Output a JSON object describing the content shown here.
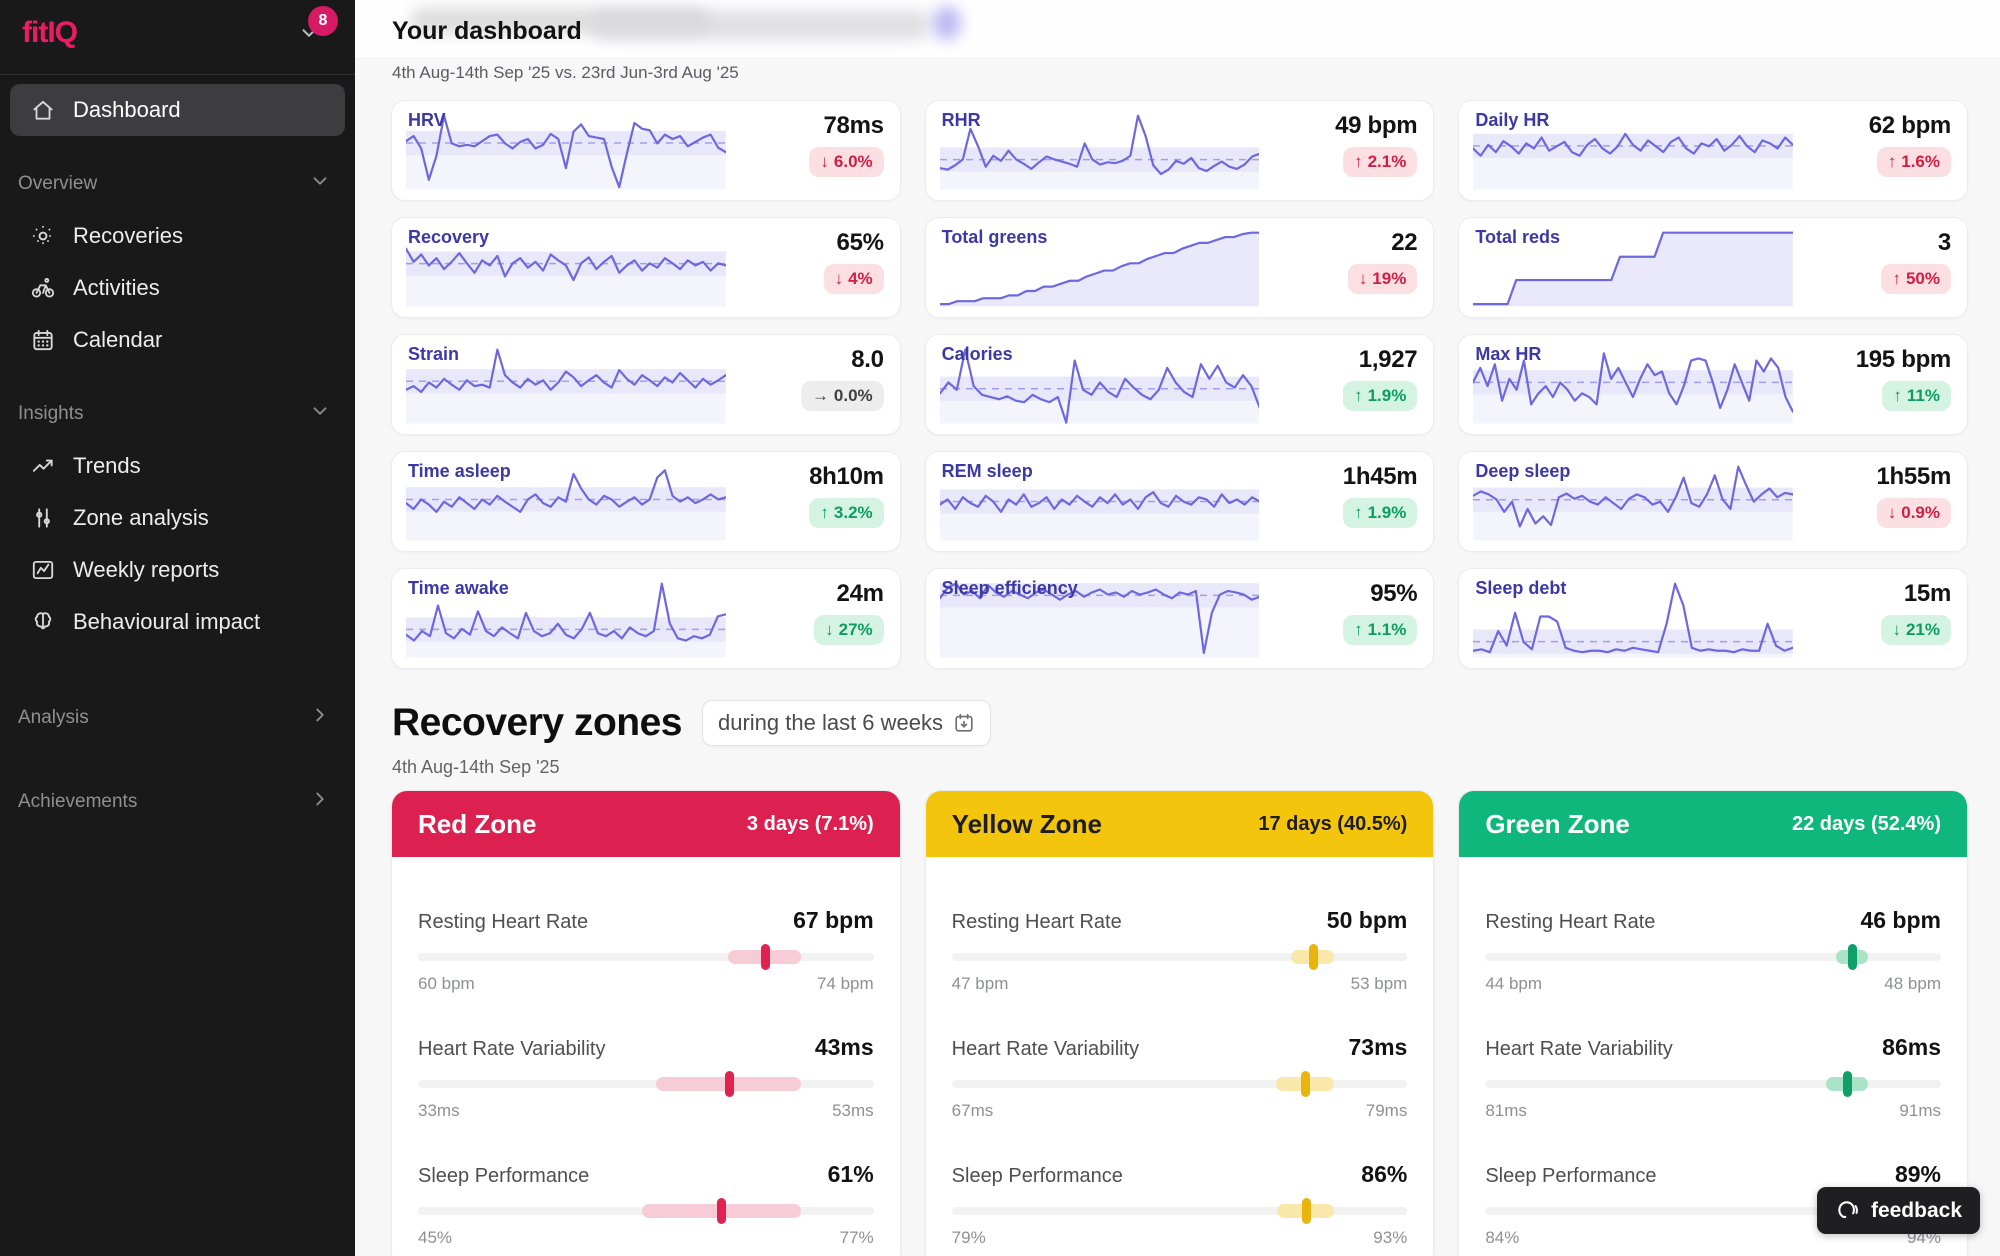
{
  "sidebar": {
    "logo": "fitIQ",
    "badge": "8",
    "primary": [
      {
        "label": "Dashboard",
        "icon": "home",
        "active": true
      }
    ],
    "groups": [
      {
        "label": "Overview",
        "chevron": "down",
        "items": [
          {
            "label": "Recoveries",
            "icon": "sun"
          },
          {
            "label": "Activities",
            "icon": "bike"
          },
          {
            "label": "Calendar",
            "icon": "calendar"
          }
        ]
      },
      {
        "label": "Insights",
        "chevron": "down",
        "items": [
          {
            "label": "Trends",
            "icon": "trend"
          },
          {
            "label": "Zone analysis",
            "icon": "zones"
          },
          {
            "label": "Weekly reports",
            "icon": "report"
          },
          {
            "label": "Behavioural impact",
            "icon": "brain"
          }
        ]
      },
      {
        "label": "Analysis",
        "chevron": "right",
        "items": []
      },
      {
        "label": "Achievements",
        "chevron": "right",
        "items": []
      }
    ]
  },
  "header": {
    "title": "Your dashboard"
  },
  "metrics": {
    "compare_caption": "4th Aug-14th Sep '25 vs. 23rd Jun-3rd Aug '25",
    "cards": [
      {
        "title": "HRV",
        "value": "78ms",
        "delta_dir": "down",
        "delta_text": "6.0%",
        "tone": "bad",
        "chart": {
          "type": "line",
          "values": [
            65,
            72,
            55,
            12,
            45,
            100,
            62,
            58,
            60,
            58,
            65,
            72,
            74,
            62,
            55,
            64,
            68,
            55,
            60,
            75,
            68,
            28,
            78,
            88,
            72,
            70,
            68,
            30,
            2,
            48,
            90,
            82,
            80,
            62,
            74,
            68,
            72,
            58,
            64,
            70,
            74,
            56,
            50
          ]
        }
      },
      {
        "title": "RHR",
        "value": "49 bpm",
        "delta_dir": "up",
        "delta_text": "2.1%",
        "tone": "bad",
        "chart": {
          "type": "line",
          "values": [
            28,
            26,
            32,
            40,
            82,
            58,
            30,
            45,
            38,
            52,
            40,
            34,
            27,
            36,
            44,
            40,
            37,
            34,
            30,
            62,
            40,
            33,
            36,
            35,
            38,
            45,
            100,
            72,
            32,
            20,
            26,
            38,
            34,
            42,
            28,
            24,
            31,
            37,
            30,
            27,
            33,
            44,
            48
          ]
        }
      },
      {
        "title": "Daily HR",
        "value": "62 bpm",
        "delta_dir": "up",
        "delta_text": "1.6%",
        "tone": "bad",
        "chart": {
          "type": "line",
          "values": [
            55,
            45,
            60,
            50,
            65,
            58,
            48,
            62,
            55,
            70,
            52,
            58,
            64,
            50,
            45,
            60,
            68,
            55,
            48,
            58,
            75,
            60,
            52,
            66,
            58,
            50,
            64,
            70,
            55,
            48,
            62,
            58,
            68,
            52,
            60,
            72,
            58,
            50,
            66,
            62,
            55,
            70,
            60
          ]
        }
      },
      {
        "title": "Recovery",
        "value": "65%",
        "delta_dir": "down",
        "delta_text": "4%",
        "tone": "bad",
        "chart": {
          "type": "line",
          "values": [
            78,
            60,
            70,
            55,
            65,
            50,
            60,
            72,
            58,
            45,
            62,
            55,
            68,
            40,
            58,
            65,
            52,
            60,
            48,
            70,
            62,
            55,
            35,
            58,
            66,
            50,
            60,
            68,
            45,
            55,
            62,
            48,
            58,
            52,
            65,
            58,
            50,
            62,
            55,
            60,
            48,
            58,
            55
          ]
        }
      },
      {
        "title": "Total greens",
        "value": "22",
        "delta_dir": "down",
        "delta_text": "19%",
        "tone": "bad",
        "chart": {
          "type": "area",
          "values": [
            2,
            2,
            6,
            6,
            6,
            10,
            10,
            10,
            14,
            14,
            20,
            20,
            26,
            26,
            30,
            34,
            34,
            40,
            44,
            48,
            48,
            54,
            58,
            58,
            64,
            68,
            72,
            72,
            78,
            82,
            86,
            86,
            90,
            94,
            94,
            98,
            100,
            100
          ]
        }
      },
      {
        "title": "Total reds",
        "value": "3",
        "delta_dir": "up",
        "delta_text": "50%",
        "tone": "bad",
        "chart": {
          "type": "area",
          "values": [
            2,
            2,
            2,
            2,
            2,
            35,
            35,
            35,
            35,
            35,
            35,
            35,
            35,
            35,
            35,
            35,
            35,
            67,
            67,
            67,
            67,
            67,
            100,
            100,
            100,
            100,
            100,
            100,
            100,
            100,
            100,
            100,
            100,
            100,
            100,
            100,
            100,
            100
          ]
        }
      },
      {
        "title": "Strain",
        "value": "8.0",
        "delta_dir": "flat",
        "delta_text": "0.0%",
        "tone": "neutral",
        "chart": {
          "type": "line",
          "values": [
            45,
            50,
            42,
            55,
            48,
            60,
            52,
            45,
            58,
            50,
            52,
            48,
            100,
            65,
            55,
            48,
            60,
            52,
            58,
            45,
            55,
            70,
            62,
            50,
            58,
            65,
            55,
            48,
            72,
            60,
            52,
            65,
            58,
            50,
            62,
            55,
            68,
            58,
            48,
            60,
            52,
            58,
            65
          ]
        }
      },
      {
        "title": "Calories",
        "value": "1,927",
        "delta_dir": "up",
        "delta_text": "1.9%",
        "tone": "good",
        "chart": {
          "type": "line",
          "values": [
            40,
            55,
            45,
            100,
            50,
            38,
            35,
            32,
            36,
            30,
            28,
            38,
            32,
            28,
            35,
            0,
            85,
            45,
            38,
            55,
            42,
            35,
            60,
            48,
            38,
            32,
            45,
            75,
            55,
            42,
            35,
            80,
            60,
            78,
            55,
            48,
            65,
            50,
            20
          ]
        }
      },
      {
        "title": "Max HR",
        "value": "195 bpm",
        "delta_dir": "up",
        "delta_text": "11%",
        "tone": "good",
        "chart": {
          "type": "line",
          "values": [
            55,
            75,
            50,
            80,
            30,
            60,
            45,
            85,
            25,
            40,
            50,
            35,
            55,
            45,
            30,
            40,
            35,
            25,
            95,
            60,
            75,
            55,
            35,
            60,
            80,
            65,
            70,
            40,
            25,
            50,
            85,
            88,
            85,
            55,
            20,
            45,
            80,
            55,
            30,
            85,
            70,
            88,
            75,
            35,
            15
          ]
        }
      },
      {
        "title": "Time asleep",
        "value": "8h10m",
        "delta_dir": "up",
        "delta_text": "3.2%",
        "tone": "good",
        "chart": {
          "type": "line",
          "values": [
            50,
            42,
            55,
            48,
            38,
            52,
            45,
            58,
            50,
            42,
            55,
            48,
            60,
            52,
            45,
            38,
            55,
            62,
            50,
            45,
            58,
            52,
            90,
            70,
            55,
            48,
            60,
            55,
            45,
            52,
            58,
            48,
            55,
            85,
            95,
            60,
            52,
            58,
            50,
            55,
            62,
            55,
            58
          ]
        }
      },
      {
        "title": "REM sleep",
        "value": "1h45m",
        "delta_dir": "up",
        "delta_text": "1.9%",
        "tone": "good",
        "chart": {
          "type": "line",
          "values": [
            48,
            55,
            42,
            58,
            50,
            45,
            60,
            52,
            38,
            55,
            48,
            62,
            45,
            50,
            58,
            42,
            55,
            48,
            60,
            52,
            45,
            58,
            50,
            62,
            48,
            55,
            42,
            58,
            65,
            50,
            45,
            60,
            52,
            48,
            58,
            55,
            45,
            62,
            50,
            55,
            48,
            58,
            52
          ]
        }
      },
      {
        "title": "Deep sleep",
        "value": "1h55m",
        "delta_dir": "down",
        "delta_text": "0.9%",
        "tone": "bad",
        "chart": {
          "type": "line",
          "values": [
            60,
            66,
            62,
            55,
            38,
            52,
            18,
            42,
            22,
            32,
            20,
            58,
            63,
            56,
            60,
            52,
            48,
            58,
            50,
            42,
            56,
            62,
            58,
            48,
            52,
            38,
            58,
            85,
            50,
            45,
            62,
            88,
            55,
            42,
            100,
            75,
            52,
            62,
            70,
            58,
            64,
            62
          ]
        }
      },
      {
        "title": "Time awake",
        "value": "24m",
        "delta_dir": "down",
        "delta_text": "27%",
        "tone": "good",
        "chart": {
          "type": "line",
          "values": [
            30,
            22,
            35,
            28,
            70,
            32,
            25,
            38,
            30,
            62,
            35,
            28,
            40,
            32,
            25,
            60,
            35,
            28,
            32,
            45,
            30,
            25,
            38,
            60,
            32,
            28,
            35,
            25,
            40,
            32,
            28,
            35,
            100,
            45,
            25,
            22,
            28,
            25,
            30,
            55,
            58
          ]
        }
      },
      {
        "title": "Sleep efficiency",
        "value": "95%",
        "delta_dir": "up",
        "delta_text": "1.1%",
        "tone": "good",
        "chart": {
          "type": "line",
          "values": [
            80,
            95,
            100,
            85,
            90,
            80,
            98,
            88,
            82,
            90,
            85,
            80,
            88,
            92,
            85,
            78,
            85,
            90,
            82,
            88,
            92,
            85,
            88,
            82,
            90,
            85,
            88,
            92,
            85,
            80,
            88,
            85,
            90,
            5,
            60,
            85,
            90,
            88,
            85,
            78,
            82
          ]
        }
      },
      {
        "title": "Sleep debt",
        "value": "15m",
        "delta_dir": "down",
        "delta_text": "21%",
        "tone": "good",
        "chart": {
          "type": "line",
          "values": [
            8,
            10,
            6,
            35,
            15,
            60,
            20,
            10,
            55,
            55,
            48,
            12,
            8,
            6,
            8,
            8,
            6,
            10,
            8,
            12,
            10,
            8,
            6,
            45,
            100,
            70,
            12,
            8,
            10,
            8,
            8,
            6,
            10,
            8,
            8,
            45,
            15,
            8,
            12
          ]
        }
      }
    ]
  },
  "recovery_zones": {
    "title": "Recovery zones",
    "range_label": "during the last 6 weeks",
    "date_range": "4th Aug-14th Sep '25",
    "zones": [
      {
        "name": "Red Zone",
        "days": "3 days (7.1%)",
        "header_bg": "#dc2150",
        "header_fg": "#ffffff",
        "marker": "#df2250",
        "band": "#f8ccd7",
        "rows": [
          {
            "label": "Resting Heart Rate",
            "value": "67 bpm",
            "value_num": 67,
            "min": "60 bpm",
            "min_num": 60,
            "max": "74 bpm",
            "max_num": 74
          },
          {
            "label": "Heart Rate Variability",
            "value": "43ms",
            "value_num": 43,
            "min": "33ms",
            "min_num": 33,
            "max": "53ms",
            "max_num": 53
          },
          {
            "label": "Sleep Performance",
            "value": "61%",
            "value_num": 61,
            "min": "45%",
            "min_num": 45,
            "max": "77%",
            "max_num": 77
          }
        ]
      },
      {
        "name": "Yellow Zone",
        "days": "17 days (40.5%)",
        "header_bg": "#f4c50d",
        "header_fg": "#1d1d1f",
        "marker": "#e9b40e",
        "band": "#f9e8a9",
        "rows": [
          {
            "label": "Resting Heart Rate",
            "value": "50 bpm",
            "value_num": 50,
            "min": "47 bpm",
            "min_num": 47,
            "max": "53 bpm",
            "max_num": 53
          },
          {
            "label": "Heart Rate Variability",
            "value": "73ms",
            "value_num": 73,
            "min": "67ms",
            "min_num": 67,
            "max": "79ms",
            "max_num": 79
          },
          {
            "label": "Sleep Performance",
            "value": "86%",
            "value_num": 86,
            "min": "79%",
            "min_num": 79,
            "max": "93%",
            "max_num": 93
          }
        ]
      },
      {
        "name": "Green Zone",
        "days": "22 days (52.4%)",
        "header_bg": "#10b77c",
        "header_fg": "#ffffff",
        "marker": "#0f9f69",
        "band": "#abe3c8",
        "rows": [
          {
            "label": "Resting Heart Rate",
            "value": "46 bpm",
            "value_num": 46,
            "min": "44 bpm",
            "min_num": 44,
            "max": "48 bpm",
            "max_num": 48
          },
          {
            "label": "Heart Rate Variability",
            "value": "86ms",
            "value_num": 86,
            "min": "81ms",
            "min_num": 81,
            "max": "91ms",
            "max_num": 91
          },
          {
            "label": "Sleep Performance",
            "value": "89%",
            "value_num": 89,
            "min": "84%",
            "min_num": 84,
            "max": "94%",
            "max_num": 94
          }
        ]
      }
    ]
  },
  "feedback": {
    "label": "feedback"
  },
  "colors": {
    "accent_pink": "#ed1a64",
    "spark_line": "#6d68df",
    "badge_bad_fg": "#cf1f45",
    "badge_good_fg": "#0d9c62"
  }
}
